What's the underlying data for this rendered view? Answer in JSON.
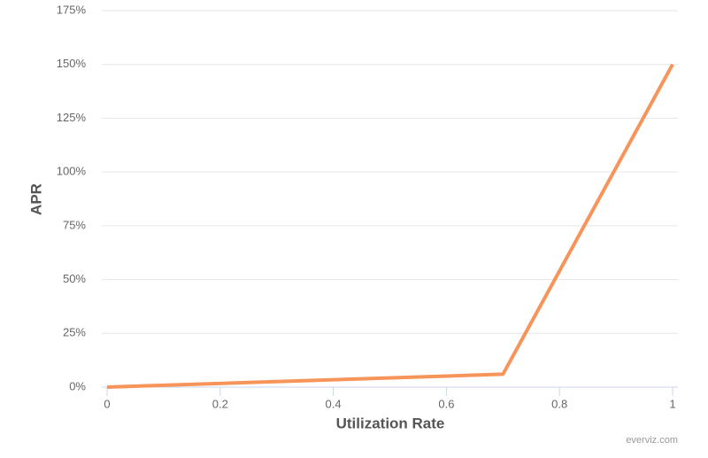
{
  "chart_data": {
    "type": "line",
    "x": [
      0,
      0.7,
      1
    ],
    "values": [
      0,
      6,
      150
    ],
    "color": "#f7945a",
    "x_label": "Utilization Rate",
    "y_label": "APR",
    "credits": "everviz.com",
    "xlim": [
      0,
      1
    ],
    "xticks": [
      0,
      0.2,
      0.4,
      0.6,
      0.8,
      1
    ],
    "ylim": [
      0,
      175
    ],
    "yticks": [
      {
        "value": 0,
        "label": "0%"
      },
      {
        "value": 25,
        "label": "25%"
      },
      {
        "value": 50,
        "label": "50%"
      },
      {
        "value": 75,
        "label": "75%"
      },
      {
        "value": 100,
        "label": "100%"
      },
      {
        "value": 125,
        "label": "125%"
      },
      {
        "value": 150,
        "label": "150%"
      },
      {
        "value": 175,
        "label": "175%"
      }
    ],
    "grid": true
  }
}
